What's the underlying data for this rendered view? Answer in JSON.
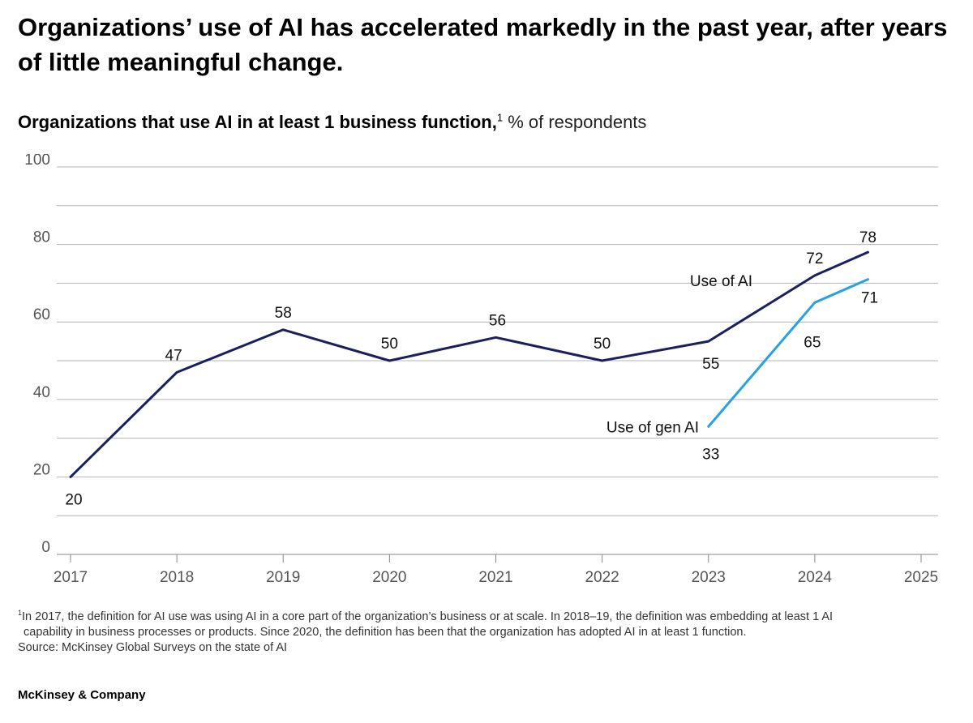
{
  "headline": "Organizations’ use of AI has accelerated markedly in the past year, after years of little meaningful change.",
  "subtitle": {
    "bold": "Organizations that use AI in at least 1 business function,",
    "footnote_marker": "1",
    "unit": " % of respondents"
  },
  "colors": {
    "use_of_ai": "#1a1f5e",
    "use_of_gen_ai": "#28a2e0",
    "grid": "#b5b5b5",
    "axis_text": "#555555"
  },
  "chart_data": {
    "type": "line",
    "x_ticks": [
      "2017",
      "2018",
      "2019",
      "2020",
      "2021",
      "2022",
      "2023",
      "2024",
      "2025"
    ],
    "xlim": [
      2017,
      2025
    ],
    "ylim": [
      0,
      100
    ],
    "y_ticks": [
      "0",
      "20",
      "40",
      "60",
      "80",
      "100"
    ],
    "grid": "horizontal every 10",
    "series": [
      {
        "name": "Use of AI",
        "points": [
          {
            "x": 2017,
            "y": 20,
            "label": "20"
          },
          {
            "x": 2018,
            "y": 47,
            "label": "47"
          },
          {
            "x": 2019,
            "y": 58,
            "label": "58"
          },
          {
            "x": 2020,
            "y": 50,
            "label": "50"
          },
          {
            "x": 2021,
            "y": 56,
            "label": "56"
          },
          {
            "x": 2022,
            "y": 50,
            "label": "50"
          },
          {
            "x": 2023,
            "y": 55,
            "label": "55"
          },
          {
            "x": 2024,
            "y": 72,
            "label": "72"
          },
          {
            "x": 2024.5,
            "y": 78,
            "label": "78"
          }
        ]
      },
      {
        "name": "Use of gen AI",
        "points": [
          {
            "x": 2023,
            "y": 33,
            "label": "33"
          },
          {
            "x": 2024,
            "y": 65,
            "label": "65"
          },
          {
            "x": 2024.5,
            "y": 71,
            "label": "71"
          }
        ]
      }
    ]
  },
  "footnote": {
    "marker": "1",
    "line1": "In 2017, the definition for AI use was using AI in a core part of the organization’s business or at scale. In 2018–19, the definition was embedding at least 1 AI",
    "line2": "capability in business processes or products. Since 2020, the definition has been that the organization has adopted AI in at least 1 function.",
    "source": "Source: McKinsey Global Surveys on the state of AI"
  },
  "brand": "McKinsey & Company"
}
